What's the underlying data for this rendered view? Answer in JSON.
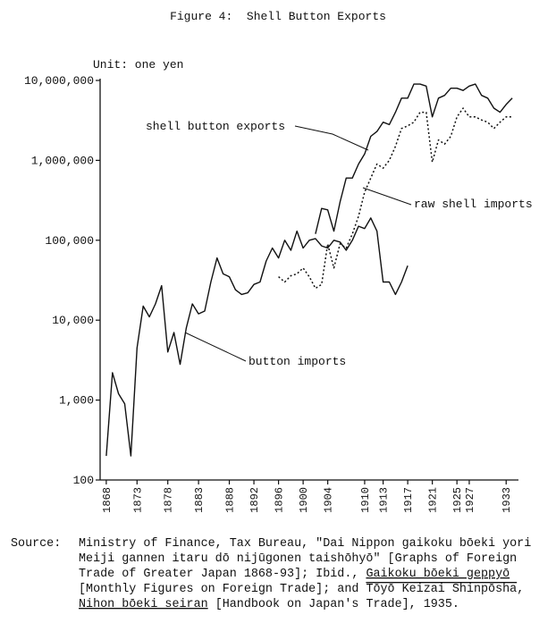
{
  "chart_data": {
    "type": "line",
    "title": "Figure 4:  Shell Button Exports",
    "y_axis_label": "Unit: one yen",
    "log_scale_y": true,
    "xlim": [
      1867,
      1935
    ],
    "xticks": [
      1868,
      1873,
      1878,
      1883,
      1888,
      1892,
      1896,
      1900,
      1904,
      1910,
      1913,
      1917,
      1921,
      1925,
      1927,
      1933
    ],
    "ylim": [
      100,
      10000000
    ],
    "yticks": [
      100,
      {
        "value": 1000,
        "label": "1,000"
      },
      {
        "value": 10000,
        "label": "10,000"
      },
      {
        "value": 100000,
        "label": "100,000"
      },
      {
        "value": 1000000,
        "label": "1,000,000"
      },
      {
        "value": 10000000,
        "label": "10,000,000"
      }
    ],
    "series": [
      {
        "name": "button imports",
        "color": "#111111",
        "style": "solid",
        "x": [
          1868,
          1869,
          1870,
          1871,
          1872,
          1873,
          1874,
          1875,
          1876,
          1877,
          1878,
          1879,
          1880,
          1881,
          1882,
          1883,
          1884,
          1885,
          1886,
          1887,
          1888,
          1889,
          1890,
          1891,
          1892,
          1893,
          1894,
          1895,
          1896,
          1897,
          1898,
          1899,
          1900,
          1901,
          1902,
          1903,
          1904,
          1905,
          1906,
          1907,
          1908,
          1909,
          1910,
          1911,
          1912,
          1913,
          1914,
          1915,
          1916,
          1917
        ],
        "values": [
          200,
          2200,
          1200,
          900,
          200,
          4500,
          15000,
          11000,
          16000,
          27000,
          4000,
          7000,
          2800,
          8000,
          16000,
          12000,
          13000,
          30000,
          60000,
          38000,
          35000,
          24000,
          21000,
          22000,
          28000,
          30000,
          55000,
          80000,
          60000,
          100000,
          75000,
          130000,
          80000,
          100000,
          105000,
          85000,
          80000,
          100000,
          95000,
          75000,
          100000,
          150000,
          140000,
          190000,
          130000,
          30000,
          30000,
          21000,
          30000,
          48000
        ]
      },
      {
        "name": "shell button exports",
        "color": "#111111",
        "style": "solid",
        "x": [
          1902,
          1903,
          1904,
          1905,
          1906,
          1907,
          1908,
          1909,
          1910,
          1911,
          1912,
          1913,
          1914,
          1915,
          1916,
          1917,
          1918,
          1919,
          1920,
          1921,
          1922,
          1923,
          1924,
          1925,
          1926,
          1927,
          1928,
          1929,
          1930,
          1931,
          1932,
          1933,
          1934
        ],
        "values": [
          120000,
          250000,
          240000,
          130000,
          300000,
          600000,
          600000,
          900000,
          1200000,
          2000000,
          2300000,
          3000000,
          2800000,
          4000000,
          6000000,
          6000000,
          9000000,
          9000000,
          8500000,
          3500000,
          6000000,
          6500000,
          8000000,
          8000000,
          7500000,
          8500000,
          9000000,
          6500000,
          6000000,
          4500000,
          4000000,
          5000000,
          6000000
        ]
      },
      {
        "name": "raw shell imports",
        "color": "#111111",
        "style": "dotted",
        "x": [
          1896,
          1897,
          1898,
          1899,
          1900,
          1901,
          1902,
          1903,
          1904,
          1905,
          1906,
          1907,
          1908,
          1909,
          1910,
          1911,
          1912,
          1913,
          1914,
          1915,
          1916,
          1917,
          1918,
          1919,
          1920,
          1921,
          1922,
          1923,
          1924,
          1925,
          1926,
          1927,
          1928,
          1929,
          1930,
          1931,
          1932,
          1933,
          1934
        ],
        "values": [
          35000,
          30000,
          36000,
          38000,
          45000,
          35000,
          25000,
          28000,
          90000,
          45000,
          90000,
          80000,
          120000,
          200000,
          400000,
          600000,
          900000,
          800000,
          1000000,
          1500000,
          2500000,
          2700000,
          3000000,
          4000000,
          4000000,
          950000,
          1800000,
          1600000,
          2000000,
          3500000,
          4500000,
          3500000,
          3500000,
          3200000,
          3000000,
          2500000,
          3000000,
          3500000,
          3500000
        ]
      }
    ],
    "source": {
      "label": "Source:",
      "lines": [
        [
          "Ministry of Finance, Tax Bureau, \"Dai Nippon gaikoku bōeki yori"
        ],
        [
          "Meiji gannen itaru dō nijūgonen taishōhyō\" [Graphs of Foreign"
        ],
        [
          "Trade of Greater Japan 1868-93]; Ibid., ",
          "Gaikoku bōeki geppyō"
        ],
        [
          "[Monthly Figures on Foreign Trade]; and ",
          "Tōyō Keizai Shinpōsha",
          ","
        ],
        [
          "Nihon bōeki seiran",
          " [Handbook on Japan's Trade], 1935."
        ]
      ]
    }
  }
}
